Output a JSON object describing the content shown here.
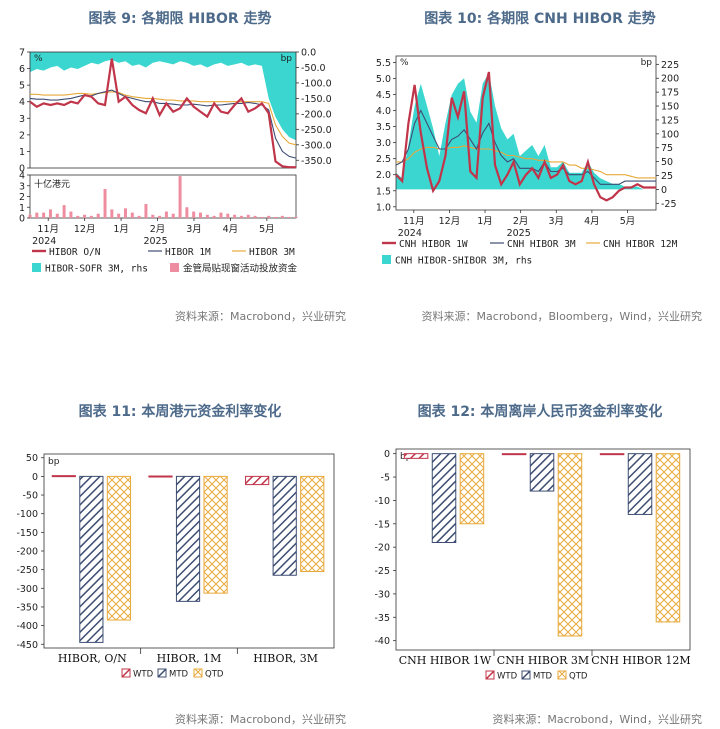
{
  "panels": {
    "p1": {
      "title": "图表 9:  各期限 HIBOR 走势",
      "source": "资料来源：Macrobond，兴业研究"
    },
    "p2": {
      "title": "图表 10: 各期限 CNH HIBOR 走势",
      "source": "资料来源：Macrobond，Bloomberg，Wind，兴业研究"
    },
    "p3": {
      "title": "图表 11: 本周港元资金利率变化",
      "source": "资料来源：Macrobond，兴业研究"
    },
    "p4": {
      "title": "图表 12: 本周离岸人民币资金利率变化",
      "source": "资料来源：Macrobond，Wind，兴业研究"
    }
  },
  "colors": {
    "red": "#c0354a",
    "navy": "#3d4d72",
    "orange": "#e8a93a",
    "teal": "#3cd6d0",
    "pink": "#ef8da0",
    "title": "#4d6a8a"
  },
  "chart_data": [
    {
      "id": "hibor",
      "type": "line",
      "x_ticks": [
        "11月",
        "12月",
        "1月",
        "2月",
        "3月",
        "4月",
        "5月"
      ],
      "year_labels": [
        "2024",
        "2025"
      ],
      "left_unit": "%",
      "right_unit": "bp",
      "left_ticks": [
        "0",
        "1",
        "2",
        "3",
        "4",
        "5",
        "6",
        "7"
      ],
      "right_ticks": [
        "0.0",
        "-50.0",
        "-100.0",
        "-150.0",
        "-200.0",
        "-250.0",
        "-300.0",
        "-350.0"
      ],
      "ylim": [
        0,
        7
      ],
      "y2lim": [
        -375,
        0
      ],
      "sub_label": "十亿港元",
      "sub_ticks": [
        "0",
        "1",
        "2",
        "3",
        "4"
      ],
      "sub_ylim": [
        0,
        4
      ],
      "series": [
        {
          "name": "HIBOR O/N",
          "color": "#c0354a",
          "values": [
            4.0,
            3.7,
            3.9,
            3.8,
            3.9,
            3.8,
            4.0,
            3.9,
            4.4,
            4.3,
            3.9,
            3.8,
            6.6,
            4.0,
            4.3,
            3.8,
            3.5,
            3.3,
            4.2,
            3.2,
            3.9,
            3.4,
            3.6,
            4.2,
            3.7,
            3.4,
            3.1,
            3.9,
            3.4,
            3.3,
            3.8,
            4.2,
            3.4,
            3.6,
            3.9,
            3.3,
            0.4,
            0.1,
            0.05,
            0.05
          ]
        },
        {
          "name": "HIBOR 1M",
          "color": "#3d4d72",
          "values": [
            4.2,
            4.15,
            4.15,
            4.1,
            4.1,
            4.15,
            4.2,
            4.3,
            4.4,
            4.35,
            4.5,
            4.6,
            4.7,
            4.5,
            4.3,
            4.2,
            4.1,
            4.0,
            4.0,
            3.9,
            3.9,
            3.85,
            3.8,
            3.8,
            3.85,
            3.8,
            3.75,
            3.8,
            3.8,
            3.85,
            3.9,
            3.9,
            3.95,
            3.9,
            3.8,
            3.5,
            1.8,
            1.0,
            0.7,
            0.6
          ]
        },
        {
          "name": "HIBOR 3M",
          "color": "#e8a93a",
          "values": [
            4.45,
            4.45,
            4.4,
            4.4,
            4.4,
            4.4,
            4.45,
            4.5,
            4.5,
            4.45,
            4.5,
            4.55,
            4.6,
            4.55,
            4.4,
            4.3,
            4.25,
            4.2,
            4.2,
            4.15,
            4.1,
            4.1,
            4.05,
            4.05,
            4.05,
            4.0,
            4.0,
            4.0,
            4.0,
            4.0,
            4.0,
            4.0,
            4.0,
            4.0,
            4.0,
            3.9,
            2.6,
            1.9,
            1.5,
            1.4
          ]
        },
        {
          "name": "HIBOR-SOFR 3M, rhs",
          "color": "#3cd6d0",
          "values": [
            -65,
            -55,
            -60,
            -50,
            -45,
            -60,
            -50,
            -55,
            -45,
            -35,
            -40,
            -30,
            -25,
            -35,
            -30,
            -45,
            -40,
            -50,
            -35,
            -30,
            -35,
            -40,
            -30,
            -35,
            -45,
            -40,
            -50,
            -40,
            -35,
            -45,
            -40,
            -35,
            -45,
            -40,
            -45,
            -150,
            -210,
            -250,
            -275,
            -285
          ]
        },
        {
          "name": "金管局贴现窗活动投放资金",
          "color": "#ef8da0",
          "type": "bar",
          "values": [
            0.3,
            0.5,
            0.5,
            0.8,
            0.4,
            1.2,
            0.6,
            0.2,
            0.3,
            0.2,
            0.4,
            2.7,
            0.8,
            0.4,
            0.9,
            0.5,
            0.2,
            1.3,
            0.3,
            0.2,
            0.6,
            0.4,
            3.9,
            1.0,
            0.6,
            0.5,
            0.3,
            0.2,
            0.5,
            0.4,
            0.3,
            0.2,
            0.3,
            0.2,
            0.1,
            0.2,
            0.1,
            0.2,
            0.1,
            0.1
          ]
        }
      ]
    },
    {
      "id": "cnh",
      "type": "line",
      "x_ticks": [
        "11月",
        "12月",
        "1月",
        "2月",
        "3月",
        "4月",
        "5月"
      ],
      "year_labels": [
        "2024",
        "2025"
      ],
      "left_unit": "%",
      "right_unit": "bp",
      "left_ticks": [
        "1.0",
        "1.5",
        "2.0",
        "2.5",
        "3.0",
        "3.5",
        "4.0",
        "4.5",
        "5.0",
        "5.5"
      ],
      "right_ticks": [
        "-25",
        "0",
        "25",
        "50",
        "75",
        "100",
        "125",
        "150",
        "175",
        "200",
        "225"
      ],
      "ylim": [
        0.9,
        5.7
      ],
      "y2lim": [
        -37,
        240
      ],
      "series": [
        {
          "name": "CNH HIBOR 1W",
          "color": "#c0354a",
          "values": [
            2.0,
            1.8,
            3.6,
            4.8,
            3.3,
            2.2,
            1.5,
            1.8,
            2.6,
            4.4,
            3.8,
            4.6,
            2.1,
            1.9,
            4.4,
            5.2,
            2.3,
            1.7,
            2.0,
            2.4,
            1.7,
            2.0,
            2.2,
            1.9,
            2.4,
            1.9,
            2.0,
            2.3,
            1.8,
            1.7,
            1.8,
            2.4,
            1.7,
            1.3,
            1.2,
            1.3,
            1.5,
            1.6,
            1.6,
            1.7,
            1.6,
            1.6,
            1.6
          ]
        },
        {
          "name": "CNH HIBOR 3M",
          "color": "#3d4d72",
          "values": [
            2.3,
            2.4,
            2.8,
            3.6,
            4.0,
            3.6,
            3.2,
            2.8,
            2.8,
            3.1,
            3.2,
            3.4,
            3.1,
            2.8,
            3.3,
            3.6,
            3.0,
            2.6,
            2.4,
            2.5,
            2.2,
            2.2,
            2.2,
            2.1,
            2.4,
            2.1,
            2.1,
            2.2,
            2.0,
            2.0,
            2.0,
            2.1,
            1.9,
            1.7,
            1.7,
            1.7,
            1.7,
            1.8,
            1.8,
            1.8,
            1.8,
            1.8,
            1.8
          ]
        },
        {
          "name": "CNH HIBOR 12M",
          "color": "#e8a93a",
          "values": [
            2.4,
            2.4,
            2.5,
            2.7,
            2.8,
            2.85,
            2.85,
            2.8,
            2.8,
            2.85,
            2.85,
            2.9,
            2.85,
            2.8,
            2.8,
            2.8,
            2.75,
            2.7,
            2.6,
            2.6,
            2.55,
            2.5,
            2.5,
            2.45,
            2.45,
            2.4,
            2.4,
            2.4,
            2.3,
            2.3,
            2.2,
            2.2,
            2.15,
            2.1,
            2.0,
            2.0,
            2.0,
            2.0,
            1.95,
            1.9,
            1.9,
            1.9,
            1.9
          ]
        },
        {
          "name": "CNH HIBOR-SHIBOR 3M, rhs",
          "color": "#3cd6d0",
          "values": [
            30,
            20,
            80,
            150,
            190,
            150,
            110,
            60,
            120,
            170,
            190,
            200,
            140,
            120,
            190,
            210,
            150,
            110,
            90,
            100,
            60,
            70,
            80,
            60,
            80,
            40,
            40,
            50,
            30,
            30,
            30,
            50,
            30,
            20,
            15,
            10,
            10,
            5,
            5,
            5,
            0,
            0,
            0
          ]
        }
      ]
    },
    {
      "id": "hkd-weekly",
      "type": "bar",
      "categories": [
        "HIBOR, O/N",
        "HIBOR, 1M",
        "HIBOR, 3M"
      ],
      "unit": "bp",
      "ylim": [
        -460,
        60
      ],
      "y_ticks": [
        "50",
        "0",
        "-50",
        "-100",
        "-150",
        "-200",
        "-250",
        "-300",
        "-350",
        "-400",
        "-450"
      ],
      "series": [
        {
          "name": "WTD",
          "color": "#c0354a",
          "values": [
            2,
            1,
            -22
          ]
        },
        {
          "name": "MTD",
          "color": "#3d4d72",
          "values": [
            -445,
            -335,
            -265
          ]
        },
        {
          "name": "QTD",
          "color": "#e8a93a",
          "values": [
            -385,
            -313,
            -255
          ]
        }
      ]
    },
    {
      "id": "cnh-weekly",
      "type": "bar",
      "categories": [
        "CNH HIBOR 1W",
        "CNH HIBOR 3M",
        "CNH HIBOR 12M"
      ],
      "unit": "bp",
      "ylim": [
        -42,
        1
      ],
      "y_ticks": [
        "0",
        "-5",
        "-10",
        "-15",
        "-20",
        "-25",
        "-30",
        "-35",
        "-40"
      ],
      "series": [
        {
          "name": "WTD",
          "color": "#c0354a",
          "values": [
            -1,
            0,
            0
          ]
        },
        {
          "name": "MTD",
          "color": "#3d4d72",
          "values": [
            -19,
            -8,
            -13
          ]
        },
        {
          "name": "QTD",
          "color": "#e8a93a",
          "values": [
            -15,
            -39,
            -36
          ]
        }
      ]
    }
  ]
}
